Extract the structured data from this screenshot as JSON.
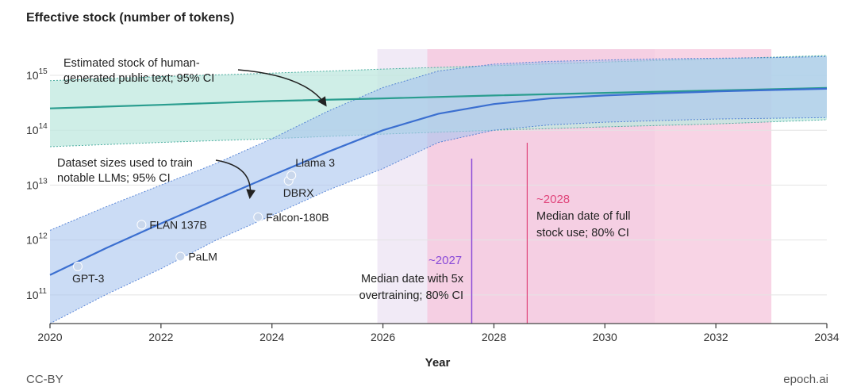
{
  "chart_data": {
    "type": "line",
    "title": "Effective stock (number of tokens)",
    "xlabel": "Year",
    "ylabel": "",
    "y_scale": "log",
    "xlim": [
      2020,
      2034
    ],
    "ylim": [
      30000000000.0,
      3000000000000000.0
    ],
    "x_ticks": [
      "2020",
      "2022",
      "2024",
      "2026",
      "2028",
      "2030",
      "2032",
      "2034"
    ],
    "y_ticks": [
      {
        "value": 100000000000.0,
        "base": "10",
        "exp": "11"
      },
      {
        "value": 1000000000000.0,
        "base": "10",
        "exp": "12"
      },
      {
        "value": 10000000000000.0,
        "base": "10",
        "exp": "13"
      },
      {
        "value": 100000000000000.0,
        "base": "10",
        "exp": "14"
      },
      {
        "value": 1000000000000000.0,
        "base": "10",
        "exp": "15"
      }
    ],
    "grid": true,
    "series": [
      {
        "name": "Estimated stock of human-generated public text; 95% CI",
        "color": "#2a9d8f",
        "band_color": "#bfe8df",
        "x": [
          2020,
          2022,
          2024,
          2026,
          2028,
          2030,
          2032,
          2034
        ],
        "y": [
          250000000000000.0,
          290000000000000.0,
          340000000000000.0,
          380000000000000.0,
          430000000000000.0,
          480000000000000.0,
          530000000000000.0,
          590000000000000.0
        ],
        "lower": [
          50000000000000.0,
          60000000000000.0,
          70000000000000.0,
          85000000000000.0,
          100000000000000.0,
          115000000000000.0,
          130000000000000.0,
          155000000000000.0
        ],
        "upper": [
          800000000000000.0,
          950000000000000.0,
          1100000000000000.0,
          1300000000000000.0,
          1500000000000000.0,
          1750000000000000.0,
          2000000000000000.0,
          2300000000000000.0
        ]
      },
      {
        "name": "Dataset sizes used to train notable LLMs; 95% CI",
        "color": "#3b6fd0",
        "band_color": "#a9c4ee",
        "x": [
          2020,
          2021,
          2022,
          2023,
          2024,
          2025,
          2026,
          2027,
          2028,
          2029,
          2030,
          2031,
          2032,
          2033,
          2034
        ],
        "y": [
          230000000000.0,
          700000000000.0,
          2000000000000.0,
          5500000000000.0,
          15000000000000.0,
          40000000000000.0,
          100000000000000.0,
          200000000000000.0,
          300000000000000.0,
          380000000000000.0,
          430000000000000.0,
          470000000000000.0,
          510000000000000.0,
          540000000000000.0,
          570000000000000.0
        ],
        "lower": [
          30000000000.0,
          100000000000.0,
          300000000000.0,
          1000000000000.0,
          2800000000000.0,
          8000000000000.0,
          20000000000000.0,
          60000000000000.0,
          100000000000000.0,
          125000000000000.0,
          140000000000000.0,
          150000000000000.0,
          160000000000000.0,
          165000000000000.0,
          170000000000000.0
        ],
        "upper": [
          1500000000000.0,
          4000000000000.0,
          10000000000000.0,
          25000000000000.0,
          70000000000000.0,
          220000000000000.0,
          600000000000000.0,
          1200000000000000.0,
          1600000000000000.0,
          1800000000000000.0,
          1900000000000000.0,
          2000000000000000.0,
          2050000000000000.0,
          2100000000000000.0,
          2200000000000000.0
        ]
      }
    ],
    "points": [
      {
        "label": "GPT-3",
        "x": 2020.5,
        "y": 330000000000.0,
        "label_pos": "below"
      },
      {
        "label": "FLAN 137B",
        "x": 2021.65,
        "y": 1900000000000.0,
        "label_pos": "right"
      },
      {
        "label": "PaLM",
        "x": 2022.35,
        "y": 500000000000.0,
        "label_pos": "right"
      },
      {
        "label": "Falcon-180B",
        "x": 2023.75,
        "y": 2600000000000.0,
        "label_pos": "right"
      },
      {
        "label": "DBRX",
        "x": 2024.3,
        "y": 12000000000000.0,
        "label_pos": "below"
      },
      {
        "label": "Llama 3",
        "x": 2024.35,
        "y": 15000000000000.0,
        "label_pos": "above"
      }
    ],
    "regions": [
      {
        "name": "80% CI with 5x overtraining",
        "x0": 2025.9,
        "x1": 2030.9,
        "color": "#efe6f4"
      },
      {
        "name": "80% CI full stock use",
        "x0": 2026.8,
        "x1": 2033.0,
        "color": "#f6c6dc"
      }
    ],
    "annotations": [
      {
        "text": "~2027",
        "x": 2027.6,
        "color": "#8a4bd8"
      },
      {
        "text": "Median date with 5x overtraining; 80% CI",
        "lines": [
          "Median date with 5x",
          "overtraining; 80% CI"
        ]
      },
      {
        "text": "~2028",
        "x": 2028.6,
        "color": "#e0457b"
      },
      {
        "text": "Median date of full stock use; 80% CI",
        "lines": [
          "Median date of full",
          "stock use; 80% CI"
        ]
      }
    ],
    "series_labels": {
      "stock": [
        "Estimated stock of human-",
        "generated public text; 95% CI"
      ],
      "datasets": [
        "Dataset sizes used to train",
        "notable LLMs; 95% CI"
      ]
    }
  },
  "footer": {
    "license": "CC-BY",
    "source": "epoch.ai"
  }
}
